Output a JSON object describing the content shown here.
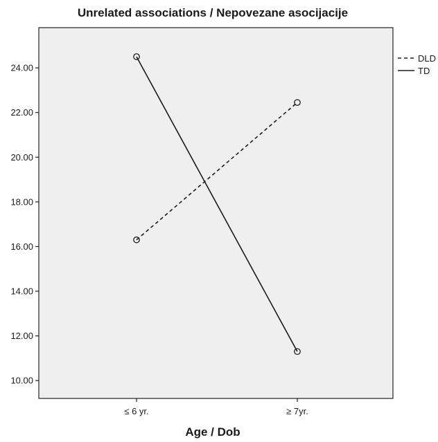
{
  "chart_data": {
    "type": "line",
    "title": "Unrelated associations / Nepovezane asocijacije",
    "xlabel": "Age / Dob",
    "ylabel": "",
    "categories": [
      "≤ 6 yr.",
      "≥ 7yr."
    ],
    "ylim": [
      9.2,
      25.8
    ],
    "yticks": [
      10,
      12,
      14,
      16,
      18,
      20,
      22,
      24
    ],
    "ytick_labels": [
      "10.00",
      "12.00",
      "14.00",
      "16.00",
      "18.00",
      "20.00",
      "22.00",
      "24.00"
    ],
    "grid": false,
    "legend_position": "right",
    "background": "#efefef",
    "series": [
      {
        "name": "DLD",
        "values": [
          16.3,
          22.45
        ],
        "line_style": "dashed",
        "color": "#1a1a1a"
      },
      {
        "name": "TD",
        "values": [
          24.5,
          11.3
        ],
        "line_style": "solid",
        "color": "#1a1a1a"
      }
    ]
  }
}
